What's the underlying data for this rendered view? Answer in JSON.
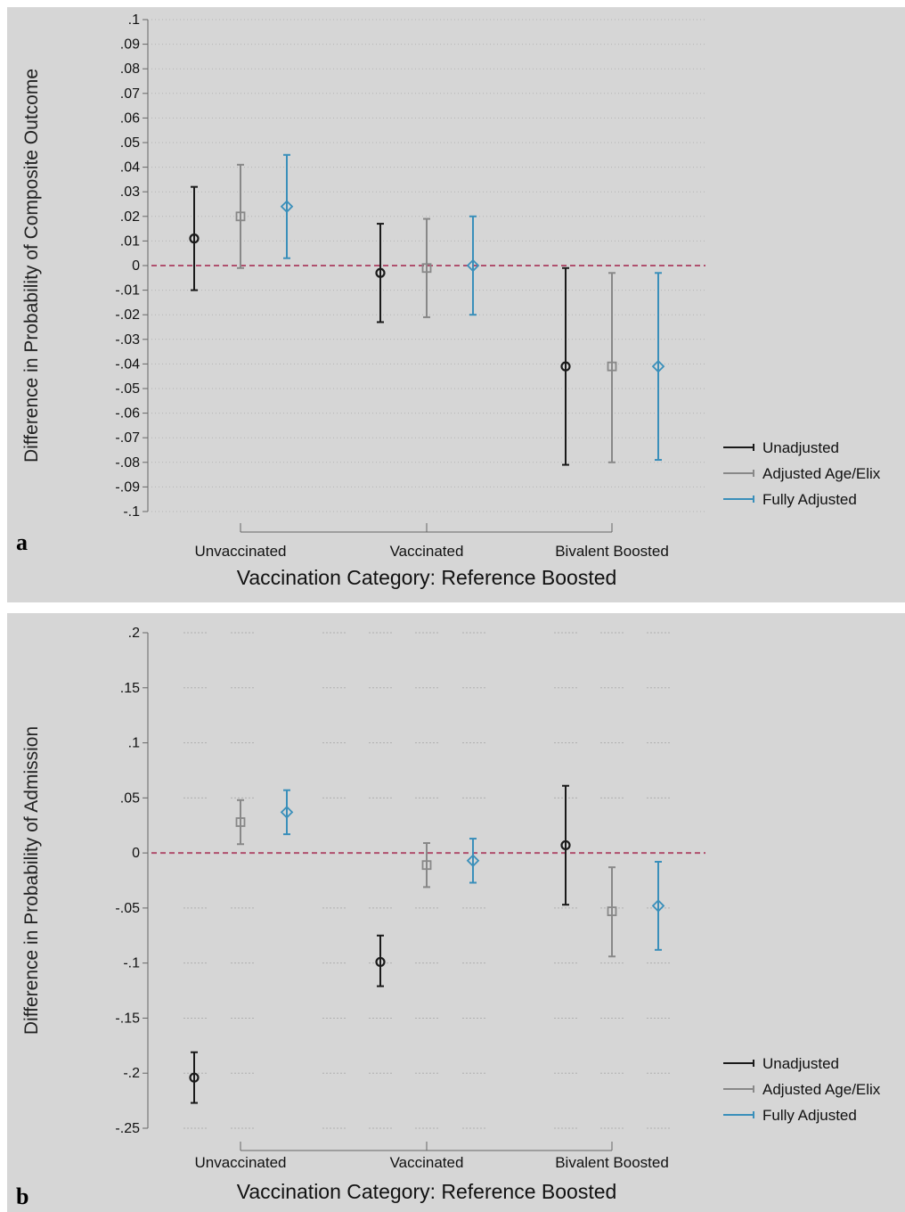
{
  "panels": [
    {
      "letter": "a"
    },
    {
      "letter": "b"
    }
  ],
  "chart_data": [
    {
      "type": "scatter",
      "title": "",
      "ylabel": "Difference in Probability of Composite Outcome",
      "xlabel": "Vaccination Category: Reference Boosted",
      "ylim": [
        -0.1,
        0.1
      ],
      "yticks": [
        0.1,
        0.09,
        0.08,
        0.07,
        0.06,
        0.05,
        0.04,
        0.03,
        0.02,
        0.01,
        0,
        -0.01,
        -0.02,
        -0.03,
        -0.04,
        -0.05,
        -0.06,
        -0.07,
        -0.08,
        -0.09,
        -0.1
      ],
      "ytick_labels": [
        ".1",
        ".09",
        ".08",
        ".07",
        ".06",
        ".05",
        ".04",
        ".03",
        ".02",
        ".01",
        "0",
        "-.01",
        "-.02",
        "-.03",
        "-.04",
        "-.05",
        "-.06",
        "-.07",
        "-.08",
        "-.09",
        "-.1"
      ],
      "categories": [
        "Unvaccinated",
        "Vaccinated",
        "Bivalent Boosted"
      ],
      "reference_line": 0,
      "grid": "dotted horizontal",
      "legend_position": "right",
      "series": [
        {
          "name": "Unadjusted",
          "color": "#1a1a1a",
          "marker": "circle",
          "values": [
            0.011,
            -0.003,
            -0.041
          ],
          "lower": [
            -0.01,
            -0.023,
            -0.081
          ],
          "upper": [
            0.032,
            0.017,
            -0.001
          ]
        },
        {
          "name": "Adjusted Age/Elix",
          "color": "#888888",
          "marker": "square",
          "values": [
            0.02,
            -0.001,
            -0.041
          ],
          "lower": [
            -0.001,
            -0.021,
            -0.08
          ],
          "upper": [
            0.041,
            0.019,
            -0.003
          ]
        },
        {
          "name": "Fully Adjusted",
          "color": "#3a8fba",
          "marker": "diamond",
          "values": [
            0.024,
            0.0,
            -0.041
          ],
          "lower": [
            0.003,
            -0.02,
            -0.079
          ],
          "upper": [
            0.045,
            0.02,
            -0.003
          ]
        }
      ]
    },
    {
      "type": "scatter",
      "title": "",
      "ylabel": "Difference in Probability of Admission",
      "xlabel": "Vaccination Category: Reference Boosted",
      "ylim": [
        -0.25,
        0.2
      ],
      "yticks": [
        0.2,
        0.15,
        0.1,
        0.05,
        0,
        -0.05,
        -0.1,
        -0.15,
        -0.2,
        -0.25
      ],
      "ytick_labels": [
        ".2",
        ".15",
        ".1",
        ".05",
        "0",
        "-.05",
        "-.1",
        "-.15",
        "-.2",
        "-.25"
      ],
      "categories": [
        "Unvaccinated",
        "Vaccinated",
        "Bivalent Boosted"
      ],
      "reference_line": 0,
      "grid": "dashed horizontal segments",
      "legend_position": "right",
      "series": [
        {
          "name": "Unadjusted",
          "color": "#1a1a1a",
          "marker": "circle",
          "values": [
            -0.204,
            -0.099,
            0.007
          ],
          "lower": [
            -0.227,
            -0.121,
            -0.047
          ],
          "upper": [
            -0.181,
            -0.075,
            0.061
          ]
        },
        {
          "name": "Adjusted Age/Elix",
          "color": "#888888",
          "marker": "square",
          "values": [
            0.028,
            -0.011,
            -0.053
          ],
          "lower": [
            0.008,
            -0.031,
            -0.094
          ],
          "upper": [
            0.048,
            0.009,
            -0.013
          ]
        },
        {
          "name": "Fully Adjusted",
          "color": "#3a8fba",
          "marker": "diamond",
          "values": [
            0.037,
            -0.007,
            -0.048
          ],
          "lower": [
            0.017,
            -0.027,
            -0.088
          ],
          "upper": [
            0.057,
            0.013,
            -0.008
          ]
        }
      ]
    }
  ]
}
